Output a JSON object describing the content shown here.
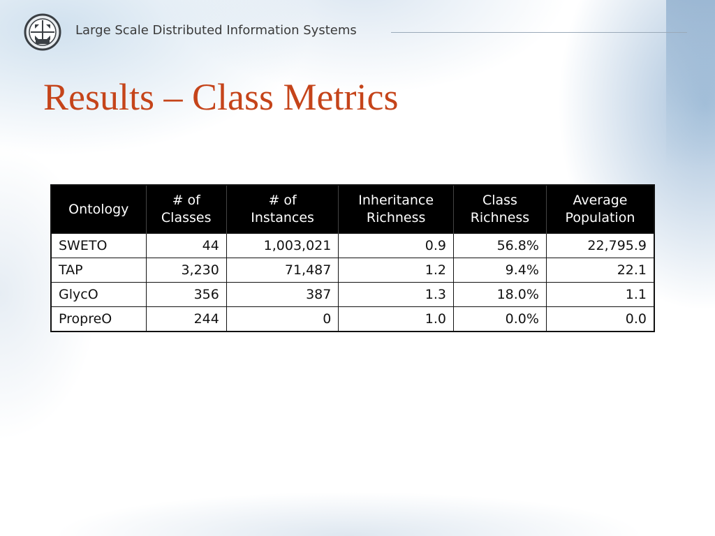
{
  "header": {
    "org_title": "Large Scale Distributed Information Systems"
  },
  "slide": {
    "title": "Results – Class Metrics"
  },
  "table": {
    "headers": [
      [
        "Ontology"
      ],
      [
        "# of",
        "Classes"
      ],
      [
        "# of",
        "Instances"
      ],
      [
        "Inheritance",
        "Richness"
      ],
      [
        "Class",
        "Richness"
      ],
      [
        "Average",
        "Population"
      ]
    ],
    "rows": [
      [
        "SWETO",
        "44",
        "1,003,021",
        "0.9",
        "56.8%",
        "22,795.9"
      ],
      [
        "TAP",
        "3,230",
        "71,487",
        "1.2",
        "9.4%",
        "22.1"
      ],
      [
        "GlycO",
        "356",
        "387",
        "1.3",
        "18.0%",
        "1.1"
      ],
      [
        "PropreO",
        "244",
        "0",
        "1.0",
        "0.0%",
        "0.0"
      ]
    ]
  },
  "colors": {
    "title": "#c5441a",
    "header_bg": "#000000",
    "header_text": "#ffffff"
  },
  "icons": {
    "logo": "lsdis-logo-icon"
  }
}
